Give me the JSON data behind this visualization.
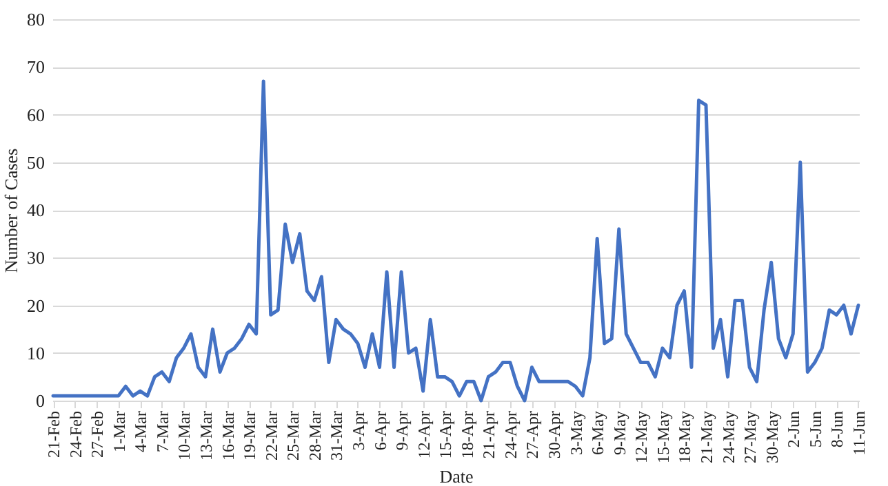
{
  "chart_data": {
    "type": "line",
    "xlabel": "Date",
    "ylabel": "Number of Cases",
    "categories": [
      "21-Feb",
      null,
      null,
      "24-Feb",
      null,
      null,
      "27-Feb",
      null,
      null,
      "1-Mar",
      null,
      null,
      "4-Mar",
      null,
      null,
      "7-Mar",
      null,
      null,
      "10-Mar",
      null,
      null,
      "13-Mar",
      null,
      null,
      "16-Mar",
      null,
      null,
      "19-Mar",
      null,
      null,
      "22-Mar",
      null,
      null,
      "25-Mar",
      null,
      null,
      "28-Mar",
      null,
      null,
      "31-Mar",
      null,
      null,
      "3-Apr",
      null,
      null,
      "6-Apr",
      null,
      null,
      "9-Apr",
      null,
      null,
      "12-Apr",
      null,
      null,
      "15-Apr",
      null,
      null,
      "18-Apr",
      null,
      null,
      "21-Apr",
      null,
      null,
      "24-Apr",
      null,
      null,
      "27-Apr",
      null,
      null,
      "30-Apr",
      null,
      null,
      "3-May",
      null,
      null,
      "6-May",
      null,
      null,
      "9-May",
      null,
      null,
      "12-May",
      null,
      null,
      "15-May",
      null,
      null,
      "18-May",
      null,
      null,
      "21-May",
      null,
      null,
      "24-May",
      null,
      null,
      "27-May",
      null,
      null,
      "30-May",
      null,
      null,
      "2-Jun",
      null,
      null,
      "5-Jun",
      null,
      null,
      "8-Jun",
      null,
      null,
      "11-Jun"
    ],
    "series": [
      {
        "color": "#4472c4",
        "values": [
          1,
          1,
          1,
          1,
          1,
          1,
          1,
          1,
          1,
          1,
          3,
          1,
          2,
          1,
          5,
          6,
          4,
          9,
          11,
          14,
          7,
          5,
          15,
          6,
          10,
          11,
          13,
          16,
          14,
          67,
          18,
          19,
          37,
          29,
          35,
          23,
          21,
          26,
          8,
          17,
          15,
          14,
          12,
          7,
          14,
          7,
          27,
          7,
          27,
          10,
          11,
          2,
          17,
          5,
          5,
          4,
          1,
          4,
          4,
          0,
          5,
          6,
          8,
          8,
          3,
          0,
          7,
          4,
          4,
          4,
          4,
          4,
          3,
          1,
          9,
          34,
          12,
          13,
          36,
          14,
          11,
          8,
          8,
          5,
          11,
          9,
          20,
          23,
          7,
          63,
          62,
          11,
          17,
          5,
          21,
          21,
          7,
          4,
          19,
          29,
          13,
          9,
          14,
          50,
          6,
          8,
          11,
          19,
          18,
          20,
          14,
          20
        ]
      }
    ],
    "ylim": [
      0,
      80
    ],
    "yticks": [
      0,
      10,
      20,
      30,
      40,
      50,
      60,
      70,
      80
    ],
    "grid": "y",
    "line_style": "solid"
  }
}
